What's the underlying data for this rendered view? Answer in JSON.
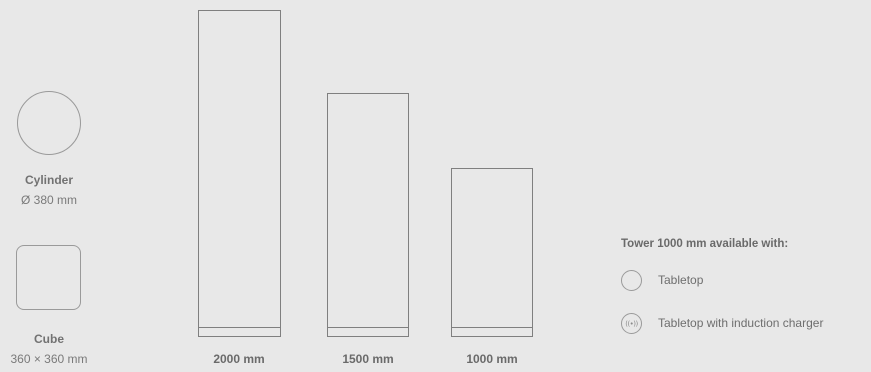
{
  "shapes": {
    "cylinder": {
      "name": "Cylinder",
      "dimension": "Ø 380 mm",
      "icon": "circle-outline-icon"
    },
    "cube": {
      "name": "Cube",
      "dimension": "360 × 360  mm",
      "icon": "rounded-square-outline-icon"
    }
  },
  "towers": [
    {
      "label": "2000 mm"
    },
    {
      "label": "1500 mm"
    },
    {
      "label": "1000 mm"
    }
  ],
  "availability": {
    "heading": "Tower 1000 mm available with:",
    "options": [
      {
        "label": "Tabletop",
        "icon": "empty-circle-icon"
      },
      {
        "label": "Tabletop with induction charger",
        "icon": "wireless-charging-icon",
        "icon_text": "((•))"
      }
    ]
  },
  "colors": {
    "background": "#e8e8e8",
    "outline": "#7f7f7f",
    "text": "#6e6e6e"
  }
}
